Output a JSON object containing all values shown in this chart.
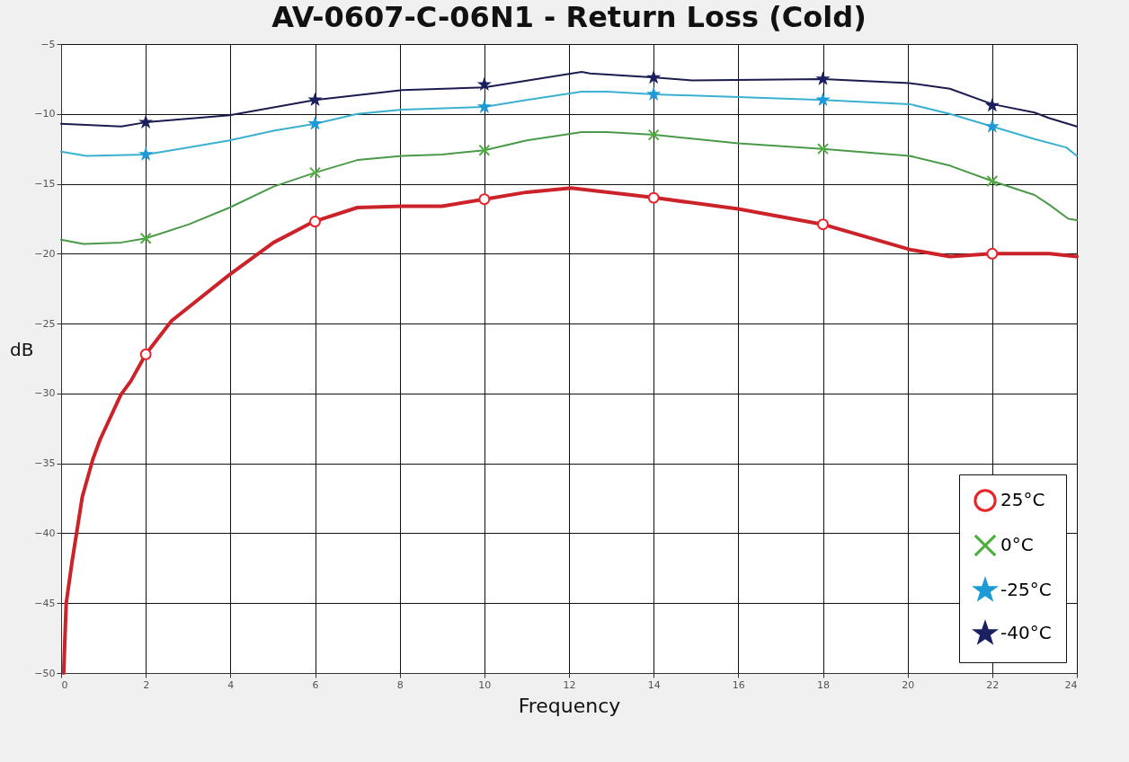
{
  "chart_data": {
    "type": "line",
    "title": "AV-0607-C-06N1 - Return Loss (Cold)",
    "xlabel": "Frequency",
    "ylabel": "dB",
    "xlim": [
      0,
      24
    ],
    "ylim": [
      -50,
      -5
    ],
    "xticks": [
      0,
      2,
      4,
      6,
      8,
      10,
      12,
      14,
      16,
      18,
      20,
      22,
      24
    ],
    "yticks": [
      -50,
      -45,
      -40,
      -35,
      -30,
      -25,
      -20,
      -15,
      -10,
      -5
    ],
    "grid": true,
    "legend": "bottom right",
    "series": [
      {
        "color": "#cc2229",
        "x": [
          0.06,
          0.12,
          0.26,
          0.37,
          0.5,
          0.75,
          0.92,
          1.41,
          1.65,
          2.0,
          2.61,
          3.98,
          5.02,
          5.97,
          7.0,
          8.06,
          9.0,
          10.0,
          11.0,
          12.05,
          14.03,
          16.0,
          18.0,
          20.05,
          21.0,
          22.0,
          23.35,
          24
        ],
        "values": [
          -50,
          -45,
          -42,
          -39.9,
          -37.4,
          -34.7,
          -33.3,
          -30.1,
          -29.1,
          -27.2,
          -24.8,
          -21.5,
          -19.2,
          -17.7,
          -16.7,
          -16.6,
          -16.6,
          -16.1,
          -15.6,
          -15.3,
          -16.0,
          -16.8,
          -17.9,
          -19.7,
          -20.2,
          -20.0,
          -20.0,
          -20.2
        ]
      },
      {
        "color": "#4a9a4a",
        "x": [
          0,
          0.53,
          1.42,
          2.0,
          3.02,
          3.98,
          5.02,
          6.0,
          7.0,
          8.06,
          9.0,
          10.0,
          11.0,
          12.3,
          12.9,
          14.03,
          16.0,
          18.0,
          20.05,
          21.0,
          22.0,
          23.0,
          23.35,
          23.8,
          24
        ],
        "values": [
          -19,
          -19.3,
          -19.2,
          -18.9,
          -17.9,
          -16.7,
          -15.2,
          -14.2,
          -13.3,
          -13.0,
          -12.9,
          -12.6,
          -11.9,
          -11.3,
          -11.3,
          -11.5,
          -12.1,
          -12.5,
          -13.0,
          -13.7,
          -14.8,
          -15.8,
          -16.5,
          -17.5,
          -17.6
        ]
      },
      {
        "color": "#3bb0d0",
        "x": [
          0,
          0.6,
          2.0,
          3.02,
          3.98,
          5.02,
          6.0,
          7.0,
          8.06,
          10.0,
          11.0,
          12.3,
          12.9,
          14.03,
          16.0,
          18.0,
          20.05,
          21.0,
          22.0,
          23.0,
          23.75,
          24
        ],
        "values": [
          -12.7,
          -13.0,
          -12.9,
          -12.4,
          -11.9,
          -11.2,
          -10.7,
          -10.0,
          -9.7,
          -9.5,
          -9.0,
          -8.4,
          -8.4,
          -8.6,
          -8.8,
          -9.0,
          -9.3,
          -10.0,
          -10.9,
          -11.8,
          -12.4,
          -13.0
        ]
      },
      {
        "color": "#1c1c4e",
        "x": [
          0,
          1.42,
          2.0,
          3.98,
          6.0,
          8.06,
          10.0,
          12.3,
          12.5,
          14.03,
          14.9,
          18.0,
          20.05,
          21.0,
          22.0,
          23.0,
          23.35,
          24
        ],
        "values": [
          -10.7,
          -10.9,
          -10.6,
          -10.1,
          -9.0,
          -8.3,
          -8.1,
          -7.0,
          -7.1,
          -7.4,
          -7.6,
          -7.5,
          -7.8,
          -8.2,
          -9.3,
          -9.9,
          -10.3,
          -10.9
        ]
      },
      {
        "type": "scatter",
        "name": "25°C",
        "color": "#e8232a",
        "marker": "circle",
        "x": [
          2,
          6,
          10,
          14,
          18,
          22
        ],
        "values": [
          -27.2,
          -17.7,
          -16.1,
          -16.0,
          -17.9,
          -20.0
        ]
      },
      {
        "type": "scatter",
        "name": "0°C",
        "color": "#4caf3c",
        "marker": "cross",
        "x": [
          2,
          6,
          10,
          14,
          18,
          22
        ],
        "values": [
          -18.9,
          -14.2,
          -12.6,
          -11.5,
          -12.5,
          -14.8
        ]
      },
      {
        "type": "scatter",
        "name": "-25°C",
        "color": "#1e9ad6",
        "marker": "star",
        "x": [
          2,
          6,
          10,
          14,
          18,
          22
        ],
        "values": [
          -12.9,
          -10.7,
          -9.5,
          -8.6,
          -9.0,
          -10.9
        ]
      },
      {
        "type": "scatter",
        "name": "-40°C",
        "color": "#1c2060",
        "marker": "star",
        "x": [
          2,
          6,
          10,
          14,
          18,
          22
        ],
        "values": [
          -10.6,
          -9.0,
          -7.9,
          -7.4,
          -7.5,
          -9.4
        ]
      }
    ]
  }
}
